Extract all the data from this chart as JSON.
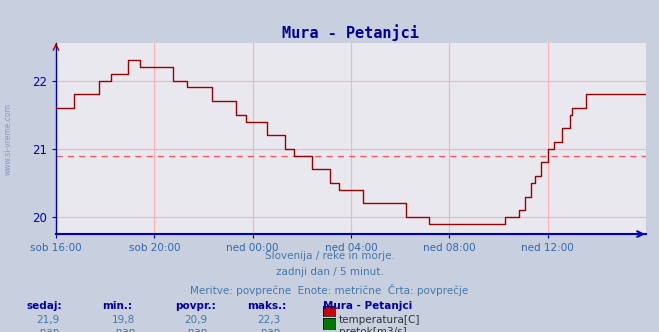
{
  "title": "Mura - Petanjci",
  "title_color": "#000099",
  "bg_color": "#c8d0e0",
  "plot_bg_color": "#e8e8ee",
  "line_color": "#990000",
  "grid_color": "#ffb0b0",
  "avg_line_color": "#ff5555",
  "avg_line_value": 20.9,
  "axis_color": "#0000bb",
  "tick_color": "#3366aa",
  "ylim_min": 19.75,
  "ylim_max": 22.55,
  "yticks": [
    20,
    21,
    22
  ],
  "x_tick_labels": [
    "sob 16:00",
    "sob 20:00",
    "ned 00:00",
    "ned 04:00",
    "ned 08:00",
    "ned 12:00"
  ],
  "x_tick_positions": [
    0,
    48,
    96,
    144,
    192,
    240
  ],
  "total_points": 289,
  "watermark": "www.si-vreme.com",
  "footer_line1": "Slovenija / reke in morje.",
  "footer_line2": "zadnji dan / 5 minut.",
  "footer_line3": "Meritve: povprečne  Enote: metrične  Črta: povprečje",
  "footer_color": "#4477aa",
  "table_headers": [
    "sedaj:",
    "min.:",
    "povpr.:",
    "maks.:"
  ],
  "table_values_temp": [
    "21,9",
    "19,8",
    "20,9",
    "22,3"
  ],
  "table_values_flow": [
    "-nan",
    "-nan",
    "-nan",
    "-nan"
  ],
  "table_station": "Mura - Petanjci",
  "table_label_temp": "temperatura[C]",
  "table_label_flow": "pretok[m3/s]",
  "temp_color": "#cc0000",
  "flow_color": "#007700"
}
